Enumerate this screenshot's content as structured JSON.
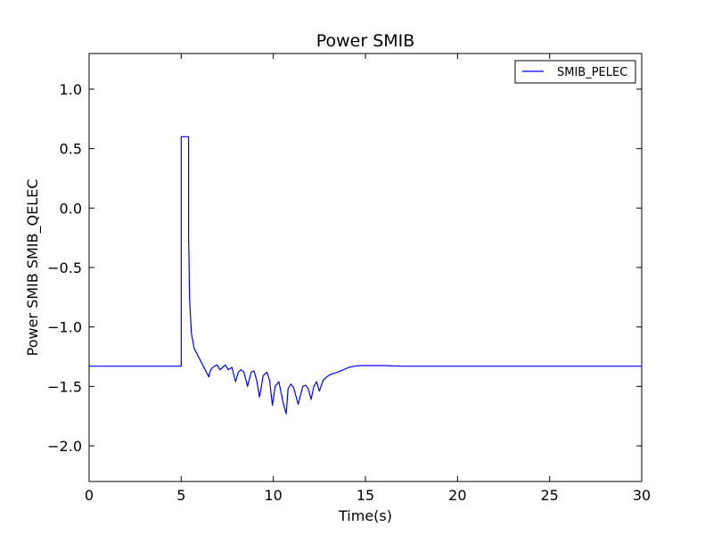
{
  "chart_data": {
    "type": "line",
    "title": "Power SMIB",
    "xlabel": "Time(s)",
    "ylabel": "Power SMIB SMIB_QELEC",
    "xlim": [
      0,
      30
    ],
    "ylim": [
      -2.3,
      1.3
    ],
    "xticks": [
      0,
      5,
      10,
      15,
      20,
      25,
      30
    ],
    "yticks": [
      1.0,
      0.5,
      0.0,
      -0.5,
      -1.0,
      -1.5,
      -2.0
    ],
    "xtick_labels": [
      "0",
      "5",
      "10",
      "15",
      "20",
      "25",
      "30"
    ],
    "ytick_labels": [
      "1.0",
      "0.5",
      "0.0",
      "−0.5",
      "−1.0",
      "−1.5",
      "−2.0"
    ],
    "grid": false,
    "legend_position": "top-right",
    "series": [
      {
        "name": "SMIB_PELEC",
        "color": "#0000ff",
        "x": [
          0,
          5.0,
          5.0,
          5.4,
          5.4,
          5.42,
          5.45,
          5.55,
          5.7,
          5.9,
          6.1,
          6.3,
          6.5,
          6.55,
          6.65,
          6.8,
          6.95,
          7.1,
          7.25,
          7.4,
          7.55,
          7.75,
          7.95,
          8.1,
          8.25,
          8.4,
          8.6,
          8.8,
          8.95,
          9.1,
          9.25,
          9.45,
          9.65,
          9.8,
          9.95,
          10.1,
          10.3,
          10.55,
          10.7,
          10.8,
          10.95,
          11.1,
          11.35,
          11.6,
          11.75,
          11.9,
          12.05,
          12.2,
          12.35,
          12.5,
          12.7,
          12.9,
          13.1,
          13.3,
          13.5,
          13.8,
          14.1,
          14.4,
          14.7,
          15.0,
          15.5,
          16.0,
          17.0,
          20.0,
          25.0,
          30.0
        ],
        "y": [
          -1.33,
          -1.33,
          0.6,
          0.6,
          -0.27,
          -0.4,
          -0.75,
          -1.05,
          -1.18,
          -1.24,
          -1.3,
          -1.36,
          -1.42,
          -1.38,
          -1.35,
          -1.33,
          -1.32,
          -1.36,
          -1.34,
          -1.32,
          -1.36,
          -1.34,
          -1.46,
          -1.38,
          -1.36,
          -1.38,
          -1.5,
          -1.38,
          -1.37,
          -1.45,
          -1.59,
          -1.41,
          -1.38,
          -1.45,
          -1.66,
          -1.5,
          -1.46,
          -1.65,
          -1.73,
          -1.52,
          -1.48,
          -1.51,
          -1.65,
          -1.5,
          -1.49,
          -1.52,
          -1.61,
          -1.5,
          -1.46,
          -1.54,
          -1.45,
          -1.42,
          -1.4,
          -1.39,
          -1.38,
          -1.36,
          -1.34,
          -1.33,
          -1.325,
          -1.325,
          -1.325,
          -1.325,
          -1.33,
          -1.33,
          -1.33,
          -1.33
        ]
      }
    ]
  }
}
